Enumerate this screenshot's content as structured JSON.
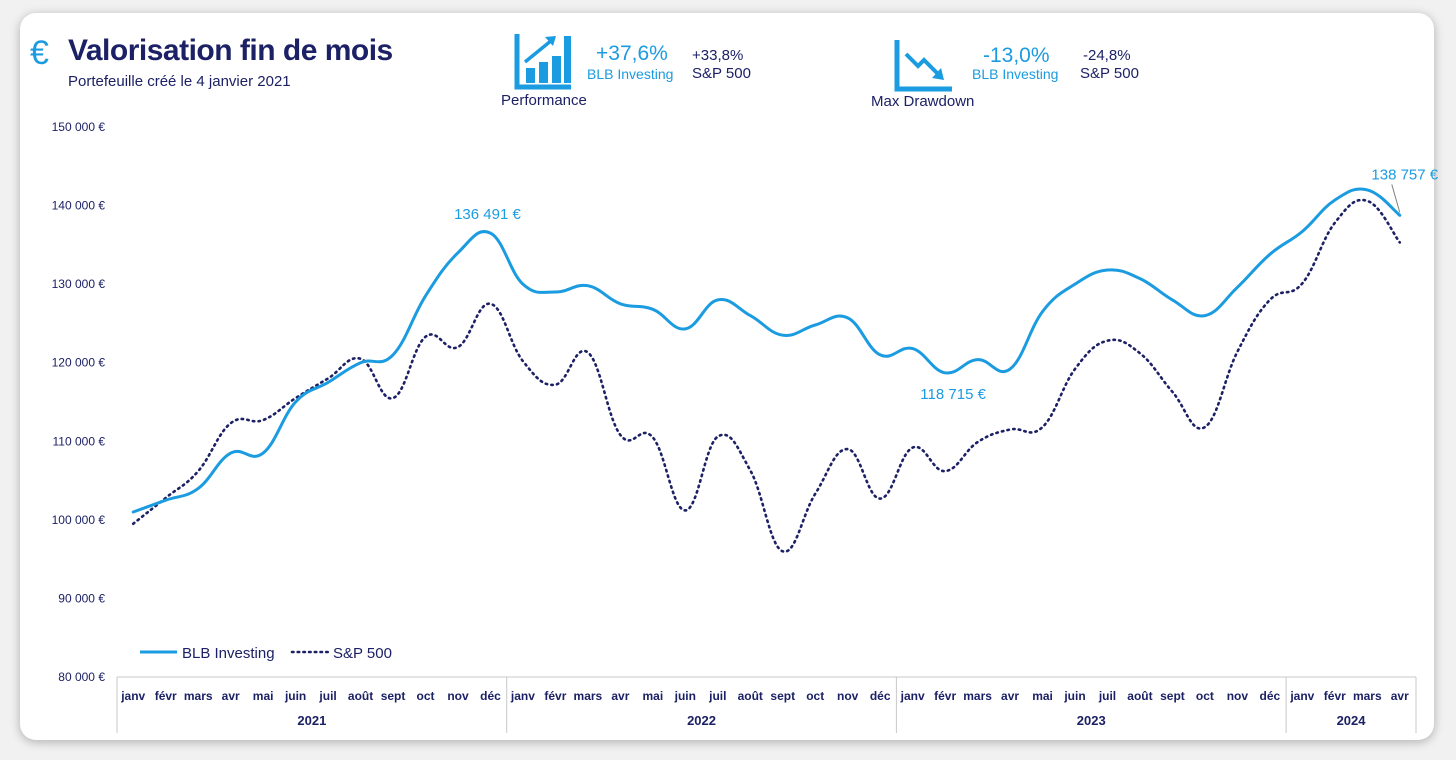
{
  "header": {
    "title": "Valorisation fin de mois",
    "subtitle": "Portefeuille créé le 4 janvier 2021",
    "currency_icon": "€"
  },
  "kpis": {
    "performance": {
      "label": "Performance",
      "blb_value": "+37,6%",
      "blb_name": "BLB Investing",
      "sp_value": "+33,8%",
      "sp_name": "S&P 500",
      "icon": "bar-chart-up-icon"
    },
    "drawdown": {
      "label": "Max Drawdown",
      "blb_value": "-13,0%",
      "blb_name": "BLB Investing",
      "sp_value": "-24,8%",
      "sp_name": "S&P 500",
      "icon": "trend-down-icon"
    }
  },
  "colors": {
    "blb": "#1b9be0",
    "sp": "#1c2165",
    "title": "#1c2165"
  },
  "chart_data": {
    "type": "line",
    "ylim": [
      80000,
      150000
    ],
    "yticks": [
      "80 000 €",
      "90 000 €",
      "100 000 €",
      "110 000 €",
      "120 000 €",
      "130 000 €",
      "140 000 €",
      "150 000 €"
    ],
    "ytick_values": [
      80000,
      90000,
      100000,
      110000,
      120000,
      130000,
      140000,
      150000
    ],
    "categories": [
      "janv",
      "févr",
      "mars",
      "avr",
      "mai",
      "juin",
      "juil",
      "août",
      "sept",
      "oct",
      "nov",
      "déc",
      "janv",
      "févr",
      "mars",
      "avr",
      "mai",
      "juin",
      "juil",
      "août",
      "sept",
      "oct",
      "nov",
      "déc",
      "janv",
      "févr",
      "mars",
      "avr",
      "mai",
      "juin",
      "juil",
      "août",
      "sept",
      "oct",
      "nov",
      "déc",
      "janv",
      "févr",
      "mars",
      "avr"
    ],
    "years": [
      {
        "label": "2021",
        "count": 12
      },
      {
        "label": "2022",
        "count": 12
      },
      {
        "label": "2023",
        "count": 12
      },
      {
        "label": "2024",
        "count": 4
      }
    ],
    "series": [
      {
        "name": "BLB Investing",
        "style": "solid",
        "values": [
          101000,
          102500,
          104000,
          108500,
          108500,
          115000,
          117500,
          120000,
          121000,
          128500,
          134000,
          136491,
          130000,
          129000,
          129800,
          127500,
          126800,
          124300,
          128000,
          126000,
          123500,
          124800,
          125700,
          121000,
          121800,
          118715,
          120400,
          119200,
          126500,
          130000,
          131800,
          130700,
          128000,
          126000,
          129600,
          133800,
          136700,
          140700,
          142000,
          138757
        ]
      },
      {
        "name": "S&P 500",
        "style": "dotted",
        "values": [
          99500,
          102800,
          106200,
          112300,
          112700,
          115500,
          118000,
          120500,
          115500,
          123300,
          122000,
          127500,
          120200,
          117200,
          121300,
          110800,
          110500,
          101200,
          110600,
          106300,
          96000,
          103300,
          109000,
          102700,
          109200,
          106200,
          109900,
          111500,
          111800,
          119200,
          122800,
          121200,
          116300,
          111800,
          121400,
          128000,
          130100,
          137800,
          140600,
          135300
        ]
      }
    ],
    "annotations": [
      {
        "series": "BLB Investing",
        "index": 11,
        "text": "136 491 €",
        "position": "above"
      },
      {
        "series": "BLB Investing",
        "index": 25,
        "text": "118 715 €",
        "position": "below"
      },
      {
        "series": "BLB Investing",
        "index": 39,
        "text": "138 757 €",
        "position": "above-right"
      }
    ],
    "legend": {
      "placement": "bottom-left",
      "items": [
        "BLB Investing",
        "S&P 500"
      ]
    },
    "grid": false
  }
}
